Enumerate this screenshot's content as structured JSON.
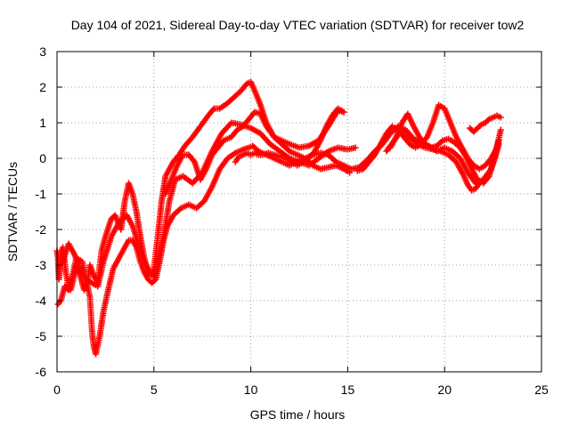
{
  "chart_data": {
    "type": "scatter",
    "title": "Day 104 of 2021, Sidereal Day-to-day VTEC variation (SDTVAR) for receiver tow2",
    "xlabel": "GPS time / hours",
    "ylabel": "SDTVAR / TECUs",
    "xlim": [
      0,
      25
    ],
    "ylim": [
      -6,
      3
    ],
    "x_ticks": [
      "0",
      "5",
      "10",
      "15",
      "20",
      "25"
    ],
    "y_ticks": [
      "-6",
      "-5",
      "-4",
      "-3",
      "-2",
      "-1",
      "0",
      "1",
      "2",
      "3"
    ],
    "grid": true,
    "marker": "+",
    "color": "#ff0000",
    "series": [
      {
        "x": [
          0.0,
          0.05,
          0.1,
          0.2,
          0.3,
          0.45,
          0.6,
          0.7,
          0.8,
          1.0,
          1.2,
          1.4,
          1.6,
          1.7,
          1.9,
          2.1,
          2.3,
          2.5,
          2.8,
          3.0,
          3.3,
          3.5,
          3.7,
          3.9,
          4.1,
          4.3,
          4.5,
          4.7,
          4.9,
          5.0,
          5.2,
          5.4,
          5.6,
          5.8,
          6.0,
          6.3,
          6.6,
          7.0,
          7.4,
          7.8,
          8.1,
          8.4,
          8.8,
          9.2,
          9.5,
          9.8,
          10.0,
          10.2,
          10.5,
          10.8,
          11.2,
          11.6,
          12.0,
          12.5,
          13.0,
          13.5,
          14.0,
          14.5,
          14.8
        ],
        "y": [
          -2.6,
          -2.8,
          -3.4,
          -2.7,
          -2.5,
          -3.2,
          -3.6,
          -3.7,
          -3.5,
          -3.0,
          -3.3,
          -3.7,
          -3.4,
          -3.0,
          -3.3,
          -3.5,
          -2.6,
          -2.2,
          -1.7,
          -1.6,
          -2.0,
          -1.2,
          -0.7,
          -1.0,
          -1.5,
          -2.2,
          -2.8,
          -3.2,
          -3.3,
          -3.1,
          -2.2,
          -1.2,
          -0.5,
          -0.3,
          -0.1,
          0.1,
          0.35,
          0.6,
          0.9,
          1.2,
          1.4,
          1.4,
          1.55,
          1.75,
          1.9,
          2.1,
          2.15,
          1.9,
          1.5,
          1.0,
          0.6,
          0.5,
          0.4,
          0.3,
          0.35,
          0.5,
          0.9,
          1.35,
          1.3
        ]
      },
      {
        "x": [
          0.05,
          0.2,
          0.4,
          0.6,
          0.8,
          1.0,
          1.3,
          1.5,
          1.7,
          1.8,
          1.9,
          2.0,
          2.2,
          2.4,
          2.6,
          2.9,
          3.2,
          3.5,
          3.7,
          3.9,
          4.1,
          4.3,
          4.5,
          4.7,
          4.9,
          5.1,
          5.3,
          5.5,
          5.7,
          6.0,
          6.4,
          6.8,
          7.2,
          7.6,
          8.0,
          8.4,
          8.8,
          9.2,
          9.6,
          9.9,
          10.1,
          10.4,
          10.8,
          11.2,
          11.6,
          12.0,
          12.4,
          12.8,
          13.2,
          13.6,
          14.0,
          14.4,
          14.8,
          15.1
        ],
        "y": [
          -4.1,
          -4.0,
          -3.6,
          -3.7,
          -3.3,
          -2.8,
          -2.9,
          -3.4,
          -3.9,
          -4.8,
          -5.3,
          -5.5,
          -5.0,
          -4.3,
          -3.8,
          -3.1,
          -2.8,
          -2.5,
          -2.3,
          -2.3,
          -2.5,
          -2.9,
          -3.2,
          -3.4,
          -3.5,
          -3.4,
          -2.9,
          -2.3,
          -1.9,
          -1.6,
          -1.4,
          -1.3,
          -1.4,
          -1.2,
          -0.8,
          -0.3,
          0.0,
          0.15,
          0.25,
          0.3,
          0.35,
          0.2,
          0.1,
          0.0,
          -0.1,
          -0.2,
          -0.1,
          0.0,
          -0.2,
          -0.3,
          -0.25,
          -0.2,
          -0.3,
          -0.4
        ]
      },
      {
        "x": [
          0.1,
          0.3,
          0.6,
          0.9,
          1.2,
          1.5,
          1.8,
          2.1,
          2.4,
          2.8,
          3.2,
          3.6,
          3.9,
          4.2,
          4.5,
          4.8,
          5.0,
          5.2,
          5.5,
          5.8,
          6.1,
          6.5,
          7.0,
          7.5,
          8.0,
          8.5,
          9.0,
          9.5,
          10.0,
          10.5,
          11.0,
          11.5,
          12.0,
          12.5,
          13.0,
          13.5,
          14.0,
          14.5,
          15.0,
          15.4
        ],
        "y": [
          -3.0,
          -2.9,
          -2.4,
          -2.7,
          -3.1,
          -3.4,
          -3.5,
          -3.6,
          -2.9,
          -2.2,
          -1.8,
          -1.6,
          -1.9,
          -2.4,
          -2.9,
          -3.2,
          -3.3,
          -3.0,
          -2.2,
          -1.2,
          -0.6,
          -0.5,
          -0.7,
          -0.4,
          0.2,
          0.7,
          1.0,
          0.95,
          0.85,
          0.7,
          0.4,
          0.2,
          0.0,
          -0.1,
          -0.2,
          0.0,
          0.2,
          0.3,
          0.25,
          0.3
        ]
      },
      {
        "x": [
          5.6,
          5.9,
          6.2,
          6.5,
          6.8,
          7.1,
          7.4,
          7.7,
          8.0,
          8.3,
          8.6,
          9.0,
          9.3,
          9.6,
          9.9,
          10.2,
          10.5,
          10.8,
          11.2,
          11.6,
          12.0,
          12.4,
          12.8,
          13.2,
          13.6,
          14.0,
          14.4,
          14.8,
          15.2,
          15.6,
          16.0,
          16.4,
          16.8,
          17.2,
          17.6,
          18.0,
          18.4,
          18.8,
          19.2,
          19.6,
          20.0,
          20.4,
          20.8,
          21.2,
          21.6,
          22.0,
          22.4,
          22.8
        ],
        "y": [
          -1.0,
          -0.6,
          -0.2,
          0.1,
          0.1,
          -0.1,
          -0.6,
          -0.3,
          0.1,
          0.3,
          0.5,
          0.6,
          0.8,
          0.9,
          1.1,
          1.3,
          1.25,
          0.9,
          0.6,
          0.4,
          0.2,
          0.1,
          0.0,
          0.1,
          0.15,
          0.1,
          -0.1,
          -0.2,
          -0.3,
          -0.25,
          -0.05,
          0.2,
          0.4,
          0.7,
          0.9,
          0.8,
          0.55,
          0.45,
          0.35,
          0.2,
          0.3,
          0.2,
          0.0,
          -0.4,
          -0.7,
          -0.6,
          -0.3,
          0.5
        ]
      },
      {
        "x": [
          9.2,
          9.4,
          9.6,
          9.8,
          10.0,
          10.2,
          10.4,
          10.6,
          10.9,
          11.2,
          11.5,
          11.8,
          12.1,
          12.4,
          12.7,
          13.0,
          13.3,
          13.6,
          13.9,
          14.2,
          14.5,
          14.8
        ],
        "y": [
          -0.1,
          0.05,
          0.1,
          0.15,
          0.1,
          0.15,
          0.1,
          0.1,
          0.15,
          0.1,
          0.05,
          0.0,
          -0.1,
          -0.2,
          -0.1,
          0.0,
          0.2,
          0.5,
          0.9,
          1.2,
          1.4,
          1.3
        ]
      },
      {
        "x": [
          15.5,
          15.8,
          16.1,
          16.4,
          16.7,
          17.0,
          17.3,
          17.6,
          17.9,
          18.2,
          18.5,
          18.8,
          19.1,
          19.4,
          19.7,
          20.0,
          20.3,
          20.6,
          20.9,
          21.2,
          21.5,
          21.8,
          22.1,
          22.4,
          22.7
        ],
        "y": [
          -0.35,
          -0.3,
          -0.1,
          0.1,
          0.4,
          0.7,
          0.9,
          0.8,
          0.6,
          0.4,
          0.3,
          0.4,
          0.6,
          1.0,
          1.5,
          1.4,
          1.0,
          0.6,
          0.3,
          0.0,
          -0.2,
          -0.3,
          -0.2,
          0.0,
          0.3
        ]
      },
      {
        "x": [
          17.2,
          17.5,
          17.8,
          18.1,
          18.4,
          18.7,
          19.0,
          19.3,
          19.6,
          19.9,
          20.2,
          20.5,
          20.8,
          21.1,
          21.4,
          21.7,
          22.0,
          22.3,
          22.6,
          22.9
        ],
        "y": [
          0.3,
          0.6,
          1.0,
          1.25,
          0.9,
          0.6,
          0.4,
          0.3,
          0.35,
          0.5,
          0.55,
          0.45,
          0.3,
          0.05,
          -0.3,
          -0.6,
          -0.7,
          -0.5,
          0.1,
          0.8
        ]
      },
      {
        "x": [
          17.0,
          17.4,
          17.8,
          18.2,
          18.6,
          19.0,
          19.4,
          19.8,
          20.2,
          20.6,
          21.0,
          21.2,
          21.4,
          21.6,
          21.8,
          22.0,
          22.2,
          22.4,
          22.6,
          22.8
        ],
        "y": [
          0.2,
          0.5,
          0.8,
          0.6,
          0.4,
          0.3,
          0.25,
          0.2,
          0.1,
          -0.1,
          -0.5,
          -0.75,
          -0.9,
          -0.85,
          -0.7,
          -0.6,
          -0.5,
          -0.3,
          0.0,
          0.4
        ]
      },
      {
        "x": [
          21.3,
          21.5,
          21.7,
          21.9,
          22.1,
          22.3,
          22.5,
          22.7,
          22.9
        ],
        "y": [
          0.85,
          0.75,
          0.85,
          0.95,
          1.0,
          1.1,
          1.15,
          1.2,
          1.15
        ]
      }
    ]
  }
}
